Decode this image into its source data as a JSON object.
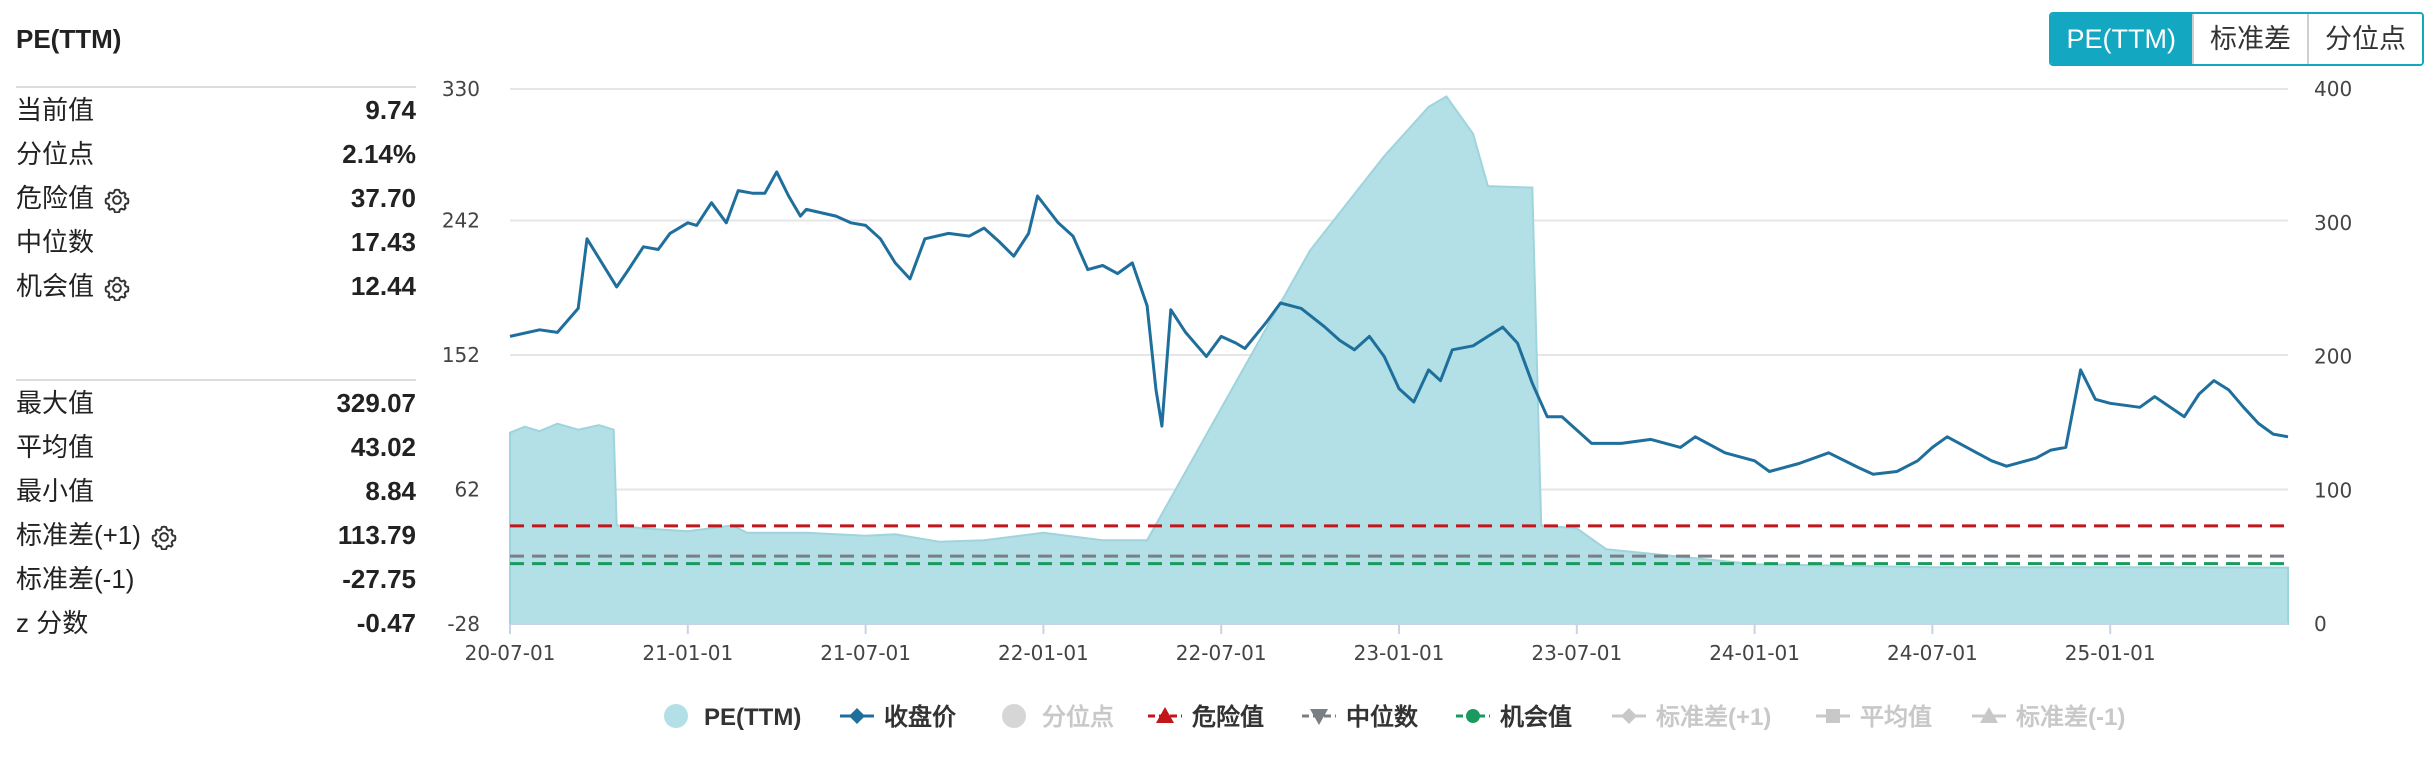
{
  "header": {
    "title": "PE(TTM)"
  },
  "toggles": [
    {
      "label": "PE(TTM)",
      "active": true
    },
    {
      "label": "标准差",
      "active": false
    },
    {
      "label": "分位点",
      "active": false
    }
  ],
  "stats_top": [
    {
      "label": "当前值",
      "value": "9.74",
      "gear": false
    },
    {
      "label": "分位点",
      "value": "2.14%",
      "gear": false
    },
    {
      "label": "危险值",
      "value": "37.70",
      "gear": true
    },
    {
      "label": "中位数",
      "value": "17.43",
      "gear": false
    },
    {
      "label": "机会值",
      "value": "12.44",
      "gear": true
    }
  ],
  "stats_bottom": [
    {
      "label": "最大值",
      "value": "329.07",
      "gear": false
    },
    {
      "label": "平均值",
      "value": "43.02",
      "gear": false
    },
    {
      "label": "最小值",
      "value": "8.84",
      "gear": false
    },
    {
      "label": "标准差(+1)",
      "value": "113.79",
      "gear": true
    },
    {
      "label": "标准差(-1)",
      "value": "-27.75",
      "gear": false
    },
    {
      "label": "z 分数",
      "value": "-0.47",
      "gear": false
    }
  ],
  "colors": {
    "pe_fill": "#b3dfe6",
    "pe_stroke": "#a0d4dc",
    "close": "#1f6f9c",
    "danger": "#c0161c",
    "median": "#7a7f86",
    "opportunity": "#1a9a5e",
    "inactive": "#c8c8c8",
    "grid": "#e6e6e6",
    "axis": "#c9d3e6"
  },
  "chart_data": {
    "type": "area",
    "x_ticks": [
      "20-07-01",
      "21-01-01",
      "21-07-01",
      "22-01-01",
      "22-07-01",
      "23-01-01",
      "23-07-01",
      "24-01-01",
      "24-07-01",
      "25-01-01"
    ],
    "x_tick_months": [
      0,
      6,
      12,
      18,
      24,
      30,
      36,
      42,
      48,
      54
    ],
    "x_range_months": [
      0,
      60
    ],
    "y_left": {
      "ticks": [
        330,
        242,
        152,
        62,
        -28
      ],
      "range": [
        -28,
        330
      ]
    },
    "y_right": {
      "ticks": [
        400,
        300,
        200,
        100,
        0
      ],
      "range": [
        0,
        400
      ]
    },
    "grid": true,
    "legend_position": "bottom-center",
    "series": [
      {
        "name": "PE(TTM)",
        "axis": "left",
        "style": "area",
        "visible": true,
        "points": [
          [
            0,
            100
          ],
          [
            0.5,
            104
          ],
          [
            1.0,
            101
          ],
          [
            1.6,
            106
          ],
          [
            2.3,
            102
          ],
          [
            3.0,
            105
          ],
          [
            3.5,
            102
          ],
          [
            3.6,
            38
          ],
          [
            4.5,
            36
          ],
          [
            6.0,
            34
          ],
          [
            7.5,
            38
          ],
          [
            8.0,
            33
          ],
          [
            10.0,
            33
          ],
          [
            12.0,
            31
          ],
          [
            13.0,
            32
          ],
          [
            14.5,
            27
          ],
          [
            16.0,
            28
          ],
          [
            18.0,
            33
          ],
          [
            20.0,
            28
          ],
          [
            21.5,
            28
          ],
          [
            24.5,
            134
          ],
          [
            27.0,
            222
          ],
          [
            29.5,
            285
          ],
          [
            31.0,
            318
          ],
          [
            31.6,
            325
          ],
          [
            32.5,
            300
          ],
          [
            33.0,
            265
          ],
          [
            34.5,
            264
          ],
          [
            34.8,
            38
          ],
          [
            36.0,
            36
          ],
          [
            37.0,
            22
          ],
          [
            38.0,
            20
          ],
          [
            39.5,
            17
          ],
          [
            42.0,
            12
          ],
          [
            45.0,
            11
          ],
          [
            48.0,
            10
          ],
          [
            52.0,
            10
          ],
          [
            56.0,
            10
          ],
          [
            60.0,
            9.74
          ]
        ]
      },
      {
        "name": "收盘价",
        "axis": "right",
        "style": "line",
        "visible": true,
        "points": [
          [
            0,
            215
          ],
          [
            1.0,
            220
          ],
          [
            1.6,
            218
          ],
          [
            2.3,
            236
          ],
          [
            2.6,
            288
          ],
          [
            3.6,
            252
          ],
          [
            4.0,
            265
          ],
          [
            4.5,
            282
          ],
          [
            5.0,
            280
          ],
          [
            5.4,
            292
          ],
          [
            6.0,
            300
          ],
          [
            6.3,
            298
          ],
          [
            6.8,
            315
          ],
          [
            7.3,
            300
          ],
          [
            7.7,
            324
          ],
          [
            8.2,
            322
          ],
          [
            8.6,
            322
          ],
          [
            9.0,
            338
          ],
          [
            9.4,
            320
          ],
          [
            9.8,
            305
          ],
          [
            10.0,
            310
          ],
          [
            11.0,
            305
          ],
          [
            11.5,
            300
          ],
          [
            12.0,
            298
          ],
          [
            12.5,
            288
          ],
          [
            13.0,
            270
          ],
          [
            13.5,
            258
          ],
          [
            14.0,
            288
          ],
          [
            14.8,
            292
          ],
          [
            15.5,
            290
          ],
          [
            16.0,
            296
          ],
          [
            16.5,
            286
          ],
          [
            17.0,
            275
          ],
          [
            17.5,
            292
          ],
          [
            17.8,
            320
          ],
          [
            18.5,
            300
          ],
          [
            19.0,
            290
          ],
          [
            19.5,
            265
          ],
          [
            20.0,
            268
          ],
          [
            20.5,
            262
          ],
          [
            21.0,
            270
          ],
          [
            21.5,
            238
          ],
          [
            21.8,
            175
          ],
          [
            22.0,
            148
          ],
          [
            22.3,
            235
          ],
          [
            22.8,
            218
          ],
          [
            23.5,
            200
          ],
          [
            24.0,
            215
          ],
          [
            24.5,
            210
          ],
          [
            24.8,
            206
          ],
          [
            25.5,
            225
          ],
          [
            26.0,
            240
          ],
          [
            26.7,
            236
          ],
          [
            27.5,
            222
          ],
          [
            28.0,
            212
          ],
          [
            28.5,
            205
          ],
          [
            29.0,
            215
          ],
          [
            29.5,
            200
          ],
          [
            30.0,
            176
          ],
          [
            30.5,
            166
          ],
          [
            31.0,
            190
          ],
          [
            31.4,
            182
          ],
          [
            31.8,
            205
          ],
          [
            32.5,
            208
          ],
          [
            33.0,
            215
          ],
          [
            33.5,
            222
          ],
          [
            34.0,
            210
          ],
          [
            34.5,
            180
          ],
          [
            35.0,
            155
          ],
          [
            35.5,
            155
          ],
          [
            36.5,
            135
          ],
          [
            37.5,
            135
          ],
          [
            38.5,
            138
          ],
          [
            39.5,
            132
          ],
          [
            40.0,
            140
          ],
          [
            41.0,
            128
          ],
          [
            42.0,
            122
          ],
          [
            42.5,
            114
          ],
          [
            43.5,
            120
          ],
          [
            44.5,
            128
          ],
          [
            45.5,
            117
          ],
          [
            46.0,
            112
          ],
          [
            46.8,
            114
          ],
          [
            47.5,
            122
          ],
          [
            48.0,
            132
          ],
          [
            48.5,
            140
          ],
          [
            49.5,
            128
          ],
          [
            50.0,
            122
          ],
          [
            50.5,
            118
          ],
          [
            51.5,
            124
          ],
          [
            52.0,
            130
          ],
          [
            52.5,
            132
          ],
          [
            53.0,
            190
          ],
          [
            53.5,
            168
          ],
          [
            54.0,
            165
          ],
          [
            55.0,
            162
          ],
          [
            55.5,
            170
          ],
          [
            56.5,
            155
          ],
          [
            57.0,
            172
          ],
          [
            57.5,
            182
          ],
          [
            58.0,
            175
          ],
          [
            58.5,
            162
          ],
          [
            59.0,
            150
          ],
          [
            59.5,
            142
          ],
          [
            60.0,
            140
          ]
        ]
      },
      {
        "name": "分位点",
        "style": "none",
        "visible": false
      },
      {
        "name": "危险值",
        "axis": "left",
        "style": "hline",
        "value": 37.7,
        "visible": true
      },
      {
        "name": "中位数",
        "axis": "left",
        "style": "hline",
        "value": 17.43,
        "visible": true
      },
      {
        "name": "机会值",
        "axis": "left",
        "style": "hline",
        "value": 12.44,
        "visible": true
      },
      {
        "name": "标准差(+1)",
        "style": "none",
        "visible": false
      },
      {
        "name": "平均值",
        "style": "none",
        "visible": false
      },
      {
        "name": "标准差(-1)",
        "style": "none",
        "visible": false
      }
    ]
  }
}
